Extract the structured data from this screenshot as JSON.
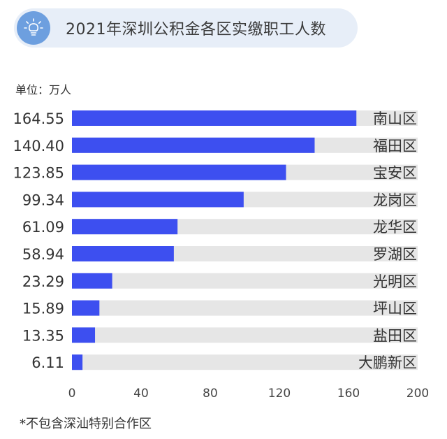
{
  "header": {
    "title": "2021年深圳公积金各区实缴职工人数",
    "icon": "lightbulb-icon"
  },
  "unit_label": "单位：万人",
  "footnote": "*不包含深汕特别合作区",
  "colors": {
    "bar": "#3d4ff0",
    "track": "#e6e6e6",
    "header_bg": "#e7eef8",
    "icon_bg": "#6d9fdf"
  },
  "chart_data": {
    "type": "bar",
    "orientation": "horizontal",
    "categories": [
      "南山区",
      "福田区",
      "宝安区",
      "龙岗区",
      "龙华区",
      "罗湖区",
      "光明区",
      "坪山区",
      "盐田区",
      "大鹏新区"
    ],
    "values": [
      164.55,
      140.4,
      123.85,
      99.34,
      61.09,
      58.94,
      23.29,
      15.89,
      13.35,
      6.11
    ],
    "value_labels": [
      "164.55",
      "140.40",
      "123.85",
      "99.34",
      "61.09",
      "58.94",
      "23.29",
      "15.89",
      "13.35",
      "6.11"
    ],
    "xlim": [
      0,
      200
    ],
    "xticks": [
      0,
      40,
      80,
      120,
      160,
      200
    ],
    "xtick_labels": [
      "0",
      "40",
      "80",
      "120",
      "160",
      "200"
    ],
    "grid": false,
    "legend": "none"
  }
}
